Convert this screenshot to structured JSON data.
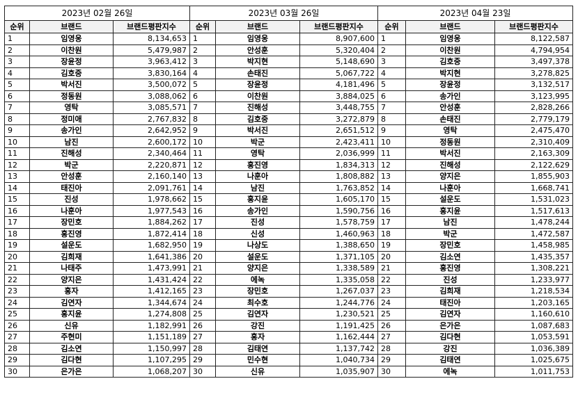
{
  "columns": {
    "rank": "순위",
    "brand": "브랜드",
    "value": "브랜드평판지수"
  },
  "tables": [
    {
      "date": "2023년 02월 26일",
      "rows": [
        {
          "rank": "1",
          "brand": "임영웅",
          "value": "8,134,653"
        },
        {
          "rank": "2",
          "brand": "이찬원",
          "value": "5,479,987"
        },
        {
          "rank": "3",
          "brand": "장윤정",
          "value": "3,963,412"
        },
        {
          "rank": "4",
          "brand": "김호중",
          "value": "3,830,164"
        },
        {
          "rank": "5",
          "brand": "박서진",
          "value": "3,500,072"
        },
        {
          "rank": "6",
          "brand": "정동원",
          "value": "3,088,062"
        },
        {
          "rank": "7",
          "brand": "영탁",
          "value": "3,085,571"
        },
        {
          "rank": "8",
          "brand": "정미애",
          "value": "2,767,832"
        },
        {
          "rank": "9",
          "brand": "송가인",
          "value": "2,642,952"
        },
        {
          "rank": "10",
          "brand": "남진",
          "value": "2,600,172"
        },
        {
          "rank": "11",
          "brand": "진해성",
          "value": "2,340,464"
        },
        {
          "rank": "12",
          "brand": "박군",
          "value": "2,220,871"
        },
        {
          "rank": "13",
          "brand": "안성훈",
          "value": "2,160,140"
        },
        {
          "rank": "14",
          "brand": "태진아",
          "value": "2,091,761"
        },
        {
          "rank": "15",
          "brand": "진성",
          "value": "1,978,662"
        },
        {
          "rank": "16",
          "brand": "나훈아",
          "value": "1,977,543"
        },
        {
          "rank": "17",
          "brand": "장민호",
          "value": "1,884,262"
        },
        {
          "rank": "18",
          "brand": "홍진영",
          "value": "1,872,414"
        },
        {
          "rank": "19",
          "brand": "설운도",
          "value": "1,682,950"
        },
        {
          "rank": "20",
          "brand": "김희재",
          "value": "1,641,386"
        },
        {
          "rank": "21",
          "brand": "나태주",
          "value": "1,473,991"
        },
        {
          "rank": "22",
          "brand": "양지은",
          "value": "1,431,424"
        },
        {
          "rank": "23",
          "brand": "홍자",
          "value": "1,412,165"
        },
        {
          "rank": "24",
          "brand": "김연자",
          "value": "1,344,674"
        },
        {
          "rank": "25",
          "brand": "홍지윤",
          "value": "1,274,808"
        },
        {
          "rank": "26",
          "brand": "신유",
          "value": "1,182,991"
        },
        {
          "rank": "27",
          "brand": "주현미",
          "value": "1,151,189"
        },
        {
          "rank": "28",
          "brand": "김소연",
          "value": "1,150,997"
        },
        {
          "rank": "29",
          "brand": "김다현",
          "value": "1,107,295"
        },
        {
          "rank": "30",
          "brand": "은가은",
          "value": "1,068,207"
        }
      ]
    },
    {
      "date": "2023년 03월 26일",
      "rows": [
        {
          "rank": "1",
          "brand": "임영웅",
          "value": "8,907,600"
        },
        {
          "rank": "2",
          "brand": "안성훈",
          "value": "5,320,404"
        },
        {
          "rank": "3",
          "brand": "박지현",
          "value": "5,148,690"
        },
        {
          "rank": "4",
          "brand": "손태진",
          "value": "5,067,722"
        },
        {
          "rank": "5",
          "brand": "장윤정",
          "value": "4,181,496"
        },
        {
          "rank": "6",
          "brand": "이찬원",
          "value": "3,884,025"
        },
        {
          "rank": "7",
          "brand": "진해성",
          "value": "3,448,755"
        },
        {
          "rank": "8",
          "brand": "김호중",
          "value": "3,272,879"
        },
        {
          "rank": "9",
          "brand": "박서진",
          "value": "2,651,512"
        },
        {
          "rank": "10",
          "brand": "박군",
          "value": "2,423,411"
        },
        {
          "rank": "11",
          "brand": "영탁",
          "value": "2,036,999"
        },
        {
          "rank": "12",
          "brand": "홍진영",
          "value": "1,834,313"
        },
        {
          "rank": "13",
          "brand": "나훈아",
          "value": "1,808,882"
        },
        {
          "rank": "14",
          "brand": "남진",
          "value": "1,763,852"
        },
        {
          "rank": "15",
          "brand": "홍지윤",
          "value": "1,605,170"
        },
        {
          "rank": "16",
          "brand": "송가인",
          "value": "1,590,756"
        },
        {
          "rank": "17",
          "brand": "진성",
          "value": "1,578,759"
        },
        {
          "rank": "18",
          "brand": "신성",
          "value": "1,460,963"
        },
        {
          "rank": "19",
          "brand": "나상도",
          "value": "1,388,650"
        },
        {
          "rank": "20",
          "brand": "설운도",
          "value": "1,371,105"
        },
        {
          "rank": "21",
          "brand": "양지은",
          "value": "1,338,589"
        },
        {
          "rank": "22",
          "brand": "에녹",
          "value": "1,335,058"
        },
        {
          "rank": "23",
          "brand": "장민호",
          "value": "1,267,037"
        },
        {
          "rank": "24",
          "brand": "최수호",
          "value": "1,244,776"
        },
        {
          "rank": "25",
          "brand": "김연자",
          "value": "1,230,521"
        },
        {
          "rank": "26",
          "brand": "강진",
          "value": "1,191,425"
        },
        {
          "rank": "27",
          "brand": "홍자",
          "value": "1,162,444"
        },
        {
          "rank": "28",
          "brand": "김태연",
          "value": "1,137,742"
        },
        {
          "rank": "29",
          "brand": "민수현",
          "value": "1,040,734"
        },
        {
          "rank": "30",
          "brand": "신유",
          "value": "1,035,907"
        }
      ]
    },
    {
      "date": "2023년 04월 23일",
      "rows": [
        {
          "rank": "1",
          "brand": "임영웅",
          "value": "8,122,587"
        },
        {
          "rank": "2",
          "brand": "이찬원",
          "value": "4,794,954"
        },
        {
          "rank": "3",
          "brand": "김호중",
          "value": "3,497,378"
        },
        {
          "rank": "4",
          "brand": "박지현",
          "value": "3,278,825"
        },
        {
          "rank": "5",
          "brand": "장윤정",
          "value": "3,132,517"
        },
        {
          "rank": "6",
          "brand": "송가인",
          "value": "3,123,995"
        },
        {
          "rank": "7",
          "brand": "안성훈",
          "value": "2,828,266"
        },
        {
          "rank": "8",
          "brand": "손태진",
          "value": "2,779,179"
        },
        {
          "rank": "9",
          "brand": "영탁",
          "value": "2,475,470"
        },
        {
          "rank": "10",
          "brand": "정동원",
          "value": "2,310,409"
        },
        {
          "rank": "11",
          "brand": "박서진",
          "value": "2,163,309"
        },
        {
          "rank": "12",
          "brand": "진해성",
          "value": "2,122,629"
        },
        {
          "rank": "13",
          "brand": "양지은",
          "value": "1,855,903"
        },
        {
          "rank": "14",
          "brand": "나훈아",
          "value": "1,668,741"
        },
        {
          "rank": "15",
          "brand": "설운도",
          "value": "1,531,023"
        },
        {
          "rank": "16",
          "brand": "홍지윤",
          "value": "1,517,613"
        },
        {
          "rank": "17",
          "brand": "남진",
          "value": "1,478,244"
        },
        {
          "rank": "18",
          "brand": "박군",
          "value": "1,472,587"
        },
        {
          "rank": "19",
          "brand": "장민호",
          "value": "1,458,985"
        },
        {
          "rank": "20",
          "brand": "김소연",
          "value": "1,435,357"
        },
        {
          "rank": "21",
          "brand": "홍진영",
          "value": "1,308,221"
        },
        {
          "rank": "22",
          "brand": "진성",
          "value": "1,233,977"
        },
        {
          "rank": "23",
          "brand": "김희재",
          "value": "1,218,534"
        },
        {
          "rank": "24",
          "brand": "태진아",
          "value": "1,203,165"
        },
        {
          "rank": "25",
          "brand": "김연자",
          "value": "1,160,610"
        },
        {
          "rank": "26",
          "brand": "은가은",
          "value": "1,087,683"
        },
        {
          "rank": "27",
          "brand": "김다현",
          "value": "1,053,591"
        },
        {
          "rank": "28",
          "brand": "강진",
          "value": "1,036,389"
        },
        {
          "rank": "29",
          "brand": "김태연",
          "value": "1,025,675"
        },
        {
          "rank": "30",
          "brand": "에녹",
          "value": "1,011,753"
        }
      ]
    }
  ]
}
